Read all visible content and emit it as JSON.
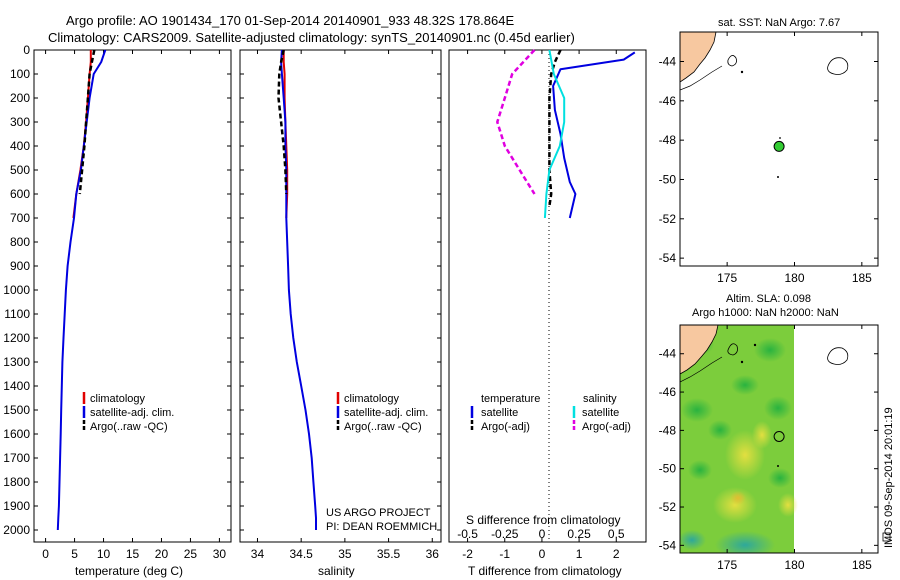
{
  "header": {
    "line1": "Argo profile: AO 1901434_170 01-Sep-2014 20140901_933 48.32S 178.864E",
    "line2": "Climatology: CARS2009. Satellite-adjusted climatology: synTS_20140901.nc (0.45d earlier)"
  },
  "colors": {
    "climatology": "#e00000",
    "satellite": "#0000e0",
    "argo": "#000000",
    "salinity_satellite": "#00e0e0",
    "salinity_argo": "#e000e0",
    "land": "#f7c8a0",
    "float_marker": "#33cc33"
  },
  "chart_data": [
    {
      "type": "line",
      "name": "temperature-profile",
      "xlabel": "temperature (deg C)",
      "ylabel": "",
      "xlim": [
        -2,
        32
      ],
      "ylim": [
        2050,
        0
      ],
      "xticks": [
        0,
        5,
        10,
        15,
        20,
        25,
        30
      ],
      "yticks": [
        0,
        100,
        200,
        300,
        400,
        500,
        600,
        700,
        800,
        900,
        1000,
        1100,
        1200,
        1300,
        1400,
        1500,
        1600,
        1700,
        1800,
        1900,
        2000
      ],
      "legend": [
        "climatology",
        "satellite-adj. clim.",
        "Argo(..raw -QC)"
      ],
      "series": [
        {
          "name": "climatology",
          "color": "#e00000",
          "dash": "none",
          "x": [
            7.8,
            7.8,
            7.6,
            7.3,
            7.0,
            6.6,
            6.0,
            5.3,
            4.8
          ],
          "y": [
            0,
            50,
            100,
            200,
            300,
            400,
            500,
            600,
            700
          ]
        },
        {
          "name": "satellite-adj. clim.",
          "color": "#0000e0",
          "dash": "none",
          "x": [
            10.3,
            9.6,
            8.3,
            7.6,
            7.1,
            6.6,
            6.1,
            5.3,
            4.9,
            4.3,
            3.8,
            3.5,
            3.3,
            3.1,
            2.9,
            2.8,
            2.7,
            2.6,
            2.5,
            2.4,
            2.3,
            2.2,
            2.1
          ],
          "y": [
            0,
            50,
            100,
            200,
            300,
            400,
            500,
            600,
            700,
            800,
            900,
            1000,
            1100,
            1200,
            1300,
            1400,
            1500,
            1600,
            1700,
            1800,
            1900,
            1950,
            2000
          ]
        },
        {
          "name": "Argo(..raw -QC)",
          "color": "#000000",
          "dash": "5,3",
          "x": [
            8.4,
            8.0,
            7.6,
            7.3,
            7.0,
            6.7,
            6.3,
            5.9
          ],
          "y": [
            0,
            50,
            100,
            200,
            300,
            400,
            500,
            600
          ]
        }
      ]
    },
    {
      "type": "line",
      "name": "salinity-profile",
      "xlabel": "salinity",
      "ylabel": "",
      "xlim": [
        33.8,
        36.1
      ],
      "ylim": [
        2050,
        0
      ],
      "xticks": [
        34,
        34.5,
        35,
        35.5,
        36
      ],
      "xticklabels": [
        "34",
        "34.5",
        "35",
        "35.5",
        "36"
      ],
      "legend": [
        "climatology",
        "satellite-adj. clim.",
        "Argo(..raw -QC)"
      ],
      "annotations": [
        "US ARGO PROJECT",
        "PI: DEAN ROEMMICH"
      ],
      "series": [
        {
          "name": "climatology",
          "color": "#e00000",
          "dash": "none",
          "x": [
            34.3,
            34.3,
            34.31,
            34.31,
            34.32,
            34.33,
            34.34,
            34.34,
            34.33
          ],
          "y": [
            0,
            50,
            100,
            200,
            300,
            400,
            500,
            600,
            700
          ]
        },
        {
          "name": "satellite-adj. clim.",
          "color": "#0000e0",
          "dash": "none",
          "x": [
            34.28,
            34.27,
            34.28,
            34.3,
            34.32,
            34.32,
            34.33,
            34.33,
            34.33,
            34.34,
            34.35,
            34.36,
            34.38,
            34.41,
            34.45,
            34.5,
            34.55,
            34.59,
            34.62,
            34.64,
            34.66,
            34.67,
            34.67
          ],
          "y": [
            0,
            50,
            100,
            200,
            300,
            400,
            500,
            600,
            700,
            800,
            900,
            1000,
            1100,
            1200,
            1300,
            1400,
            1500,
            1600,
            1700,
            1800,
            1900,
            1950,
            2000
          ]
        },
        {
          "name": "Argo(..raw -QC)",
          "color": "#000000",
          "dash": "5,3",
          "x": [
            34.3,
            34.27,
            34.25,
            34.24,
            34.27,
            34.3,
            34.32,
            34.33
          ],
          "y": [
            0,
            50,
            100,
            200,
            300,
            400,
            500,
            600
          ]
        }
      ]
    },
    {
      "type": "line",
      "name": "difference-profile",
      "xlabel": "T difference from climatology",
      "xlabel_top": "S difference from climatology",
      "xlim": [
        -2.5,
        2.8
      ],
      "ylim": [
        2050,
        0
      ],
      "xticks": [
        -2,
        -1,
        0,
        1,
        2
      ],
      "xticklabels": [
        "-2",
        "-1",
        "0",
        "1",
        "2"
      ],
      "xticks_top": [
        -0.5,
        -0.25,
        0,
        0.25,
        0.5
      ],
      "xticklabels_top": [
        "-0.5",
        "-0.25",
        "0",
        "0.25",
        "0.5"
      ],
      "legend_headers": [
        "temperature",
        "salinity"
      ],
      "legend": [
        "satellite",
        "Argo(-adj)",
        "satellite",
        "Argo(-adj)"
      ],
      "series": [
        {
          "name": "temperature satellite",
          "color": "#0000e0",
          "dash": "none",
          "x": [
            2.5,
            2.2,
            0.5,
            0.3,
            0.35,
            0.5,
            0.6,
            0.75,
            0.9,
            0.75
          ],
          "y": [
            10,
            40,
            80,
            150,
            250,
            350,
            450,
            550,
            600,
            700
          ]
        },
        {
          "name": "temperature Argo(-adj)",
          "color": "#000000",
          "dash": "5,3",
          "x": [
            0.5,
            0.35,
            0.25,
            0.2,
            0.2,
            0.2,
            0.2,
            0.25,
            0.2
          ],
          "y": [
            0,
            50,
            100,
            200,
            300,
            400,
            500,
            600,
            650
          ]
        },
        {
          "name": "salinity satellite",
          "color": "#00e0e0",
          "dash": "none",
          "x": [
            0.05,
            0.08,
            0.15,
            0.15,
            0.12,
            0.05,
            0.03,
            0.02
          ],
          "y": [
            0,
            100,
            200,
            300,
            400,
            500,
            600,
            700
          ]
        },
        {
          "name": "salinity Argo(-adj)",
          "color": "#e000e0",
          "dash": "5,3",
          "x": [
            -0.05,
            -0.2,
            -0.25,
            -0.3,
            -0.25,
            -0.15,
            -0.05
          ],
          "y": [
            0,
            100,
            200,
            300,
            400,
            500,
            600
          ]
        }
      ]
    },
    {
      "type": "heatmap",
      "name": "sst-map",
      "title": "sat. SST: NaN Argo: 7.67",
      "xlim": [
        171.5,
        186.2
      ],
      "ylim": [
        -54.4,
        -42.5
      ],
      "xticks": [
        175,
        180,
        185
      ],
      "yticks": [
        -44,
        -46,
        -48,
        -50,
        -52,
        -54
      ],
      "float_position": [
        178.86,
        -48.32
      ]
    },
    {
      "type": "heatmap",
      "name": "sla-map",
      "title_line1": "Altim. SLA: 0.098",
      "title_line2": "Argo h1000: NaN h2000: NaN",
      "xlim": [
        171.5,
        186.2
      ],
      "ylim": [
        -54.4,
        -42.5
      ],
      "xticks": [
        175,
        180,
        185
      ],
      "yticks": [
        -44,
        -46,
        -48,
        -50,
        -52,
        -54
      ],
      "float_position": [
        178.86,
        -48.32
      ]
    }
  ],
  "footer": {
    "stamp": "IMOS 09-Sep-2014 20:01:19"
  }
}
